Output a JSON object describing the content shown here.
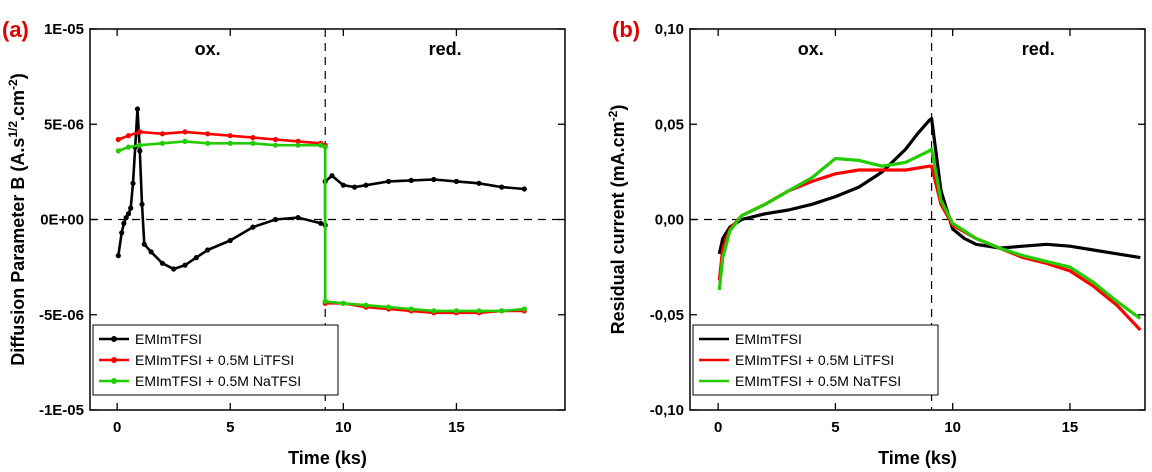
{
  "chart_data": [
    {
      "type": "line",
      "panel_label": "(a)",
      "xlabel": "Time (ks)",
      "ylabel": "Diffusion Parameter B (A.s^1/2.cm^-2)",
      "ylabel_parts": {
        "main": "Diffusion Parameter B (A.s",
        "sup1": "1/2",
        "mid": ".cm",
        "sup2": "-2",
        "end": ")"
      },
      "xlim": [
        -1.2,
        19.8
      ],
      "ylim": [
        -1e-05,
        1e-05
      ],
      "x_ticks": [
        0,
        5,
        10,
        15
      ],
      "x_tick_labels": [
        "0",
        "5",
        "10",
        "15"
      ],
      "y_ticks": [
        -1e-05,
        -5e-06,
        0,
        5e-06,
        1e-05
      ],
      "y_tick_labels": [
        "-1E-05",
        "-5E-06",
        "0E+00",
        "5E-06",
        "1E-05"
      ],
      "regions": [
        "ox.",
        "red."
      ],
      "divider_x": 9.2,
      "zero_line": 0,
      "legend_position": "bottom-left",
      "series": [
        {
          "name": "EMImTFSI",
          "color": "#000000",
          "marker": "dot",
          "x": [
            0.05,
            0.2,
            0.3,
            0.4,
            0.5,
            0.6,
            0.7,
            0.8,
            0.9,
            1.0,
            1.1,
            1.2,
            1.5,
            2.0,
            2.5,
            3.0,
            3.5,
            4.0,
            5.0,
            6.0,
            7.0,
            8.0,
            9.0,
            9.2,
            9.2,
            9.5,
            10.0,
            10.5,
            11.0,
            12.0,
            13.0,
            14.0,
            15.0,
            16.0,
            17.0,
            18.0
          ],
          "y": [
            -1.9e-06,
            -7e-07,
            -2e-07,
            1e-07,
            3e-07,
            6e-07,
            1.9e-06,
            3.8e-06,
            5.8e-06,
            3.6e-06,
            8e-07,
            -1.3e-06,
            -1.7e-06,
            -2.3e-06,
            -2.6e-06,
            -2.4e-06,
            -2e-06,
            -1.6e-06,
            -1.1e-06,
            -4e-07,
            0.0,
            1e-07,
            -2e-07,
            -3e-07,
            2e-06,
            2.3e-06,
            1.8e-06,
            1.7e-06,
            1.8e-06,
            2e-06,
            2.05e-06,
            2.1e-06,
            2e-06,
            1.9e-06,
            1.7e-06,
            1.6e-06
          ]
        },
        {
          "name": "EMImTFSI + 0.5M LiTFSI",
          "color": "#ff0000",
          "marker": "dot",
          "x": [
            0.05,
            0.5,
            1.0,
            2.0,
            3.0,
            4.0,
            5.0,
            6.0,
            7.0,
            8.0,
            9.0,
            9.2,
            9.2,
            10.0,
            11.0,
            12.0,
            13.0,
            14.0,
            15.0,
            16.0,
            17.0,
            18.0
          ],
          "y": [
            4.2e-06,
            4.4e-06,
            4.6e-06,
            4.5e-06,
            4.6e-06,
            4.5e-06,
            4.4e-06,
            4.3e-06,
            4.2e-06,
            4.1e-06,
            4e-06,
            3.9e-06,
            -4.4e-06,
            -4.4e-06,
            -4.6e-06,
            -4.7e-06,
            -4.8e-06,
            -4.9e-06,
            -4.9e-06,
            -4.9e-06,
            -4.8e-06,
            -4.8e-06
          ]
        },
        {
          "name": "EMImTFSI + 0.5M NaTFSI",
          "color": "#22cc00",
          "marker": "dot",
          "x": [
            0.05,
            0.5,
            1.0,
            2.0,
            3.0,
            4.0,
            5.0,
            6.0,
            7.0,
            8.0,
            9.0,
            9.2,
            9.2,
            10.0,
            11.0,
            12.0,
            13.0,
            14.0,
            15.0,
            16.0,
            17.0,
            18.0
          ],
          "y": [
            3.6e-06,
            3.8e-06,
            3.9e-06,
            4e-06,
            4.1e-06,
            4e-06,
            4e-06,
            4e-06,
            3.9e-06,
            3.9e-06,
            3.9e-06,
            3.8e-06,
            -4.3e-06,
            -4.4e-06,
            -4.5e-06,
            -4.6e-06,
            -4.7e-06,
            -4.8e-06,
            -4.8e-06,
            -4.8e-06,
            -4.8e-06,
            -4.7e-06
          ]
        }
      ]
    },
    {
      "type": "line",
      "panel_label": "(b)",
      "xlabel": "Time (ks)",
      "ylabel": "Residual current (mA.cm^-2)",
      "ylabel_parts": {
        "main": "Residual current (mA.cm",
        "sup1": "-2",
        "end": ")"
      },
      "xlim": [
        -1.2,
        18.2
      ],
      "ylim": [
        -0.1,
        0.1
      ],
      "x_ticks": [
        0,
        5,
        10,
        15
      ],
      "x_tick_labels": [
        "0",
        "5",
        "10",
        "15"
      ],
      "y_ticks": [
        -0.1,
        -0.05,
        0,
        0.05,
        0.1
      ],
      "y_tick_labels": [
        "-0,10",
        "-0,05",
        "0,00",
        "0,05",
        "0,10"
      ],
      "regions": [
        "ox.",
        "red."
      ],
      "divider_x": 9.1,
      "zero_line": 0,
      "legend_position": "bottom-left",
      "series": [
        {
          "name": "EMImTFSI",
          "color": "#000000",
          "marker": "none",
          "x": [
            0.05,
            0.2,
            0.5,
            1.0,
            2.0,
            3.0,
            4.0,
            5.0,
            6.0,
            7.0,
            8.0,
            8.5,
            9.0,
            9.1,
            9.5,
            10.0,
            10.5,
            11.0,
            12.0,
            13.0,
            14.0,
            15.0,
            16.0,
            17.0,
            18.0
          ],
          "y": [
            -0.018,
            -0.01,
            -0.004,
            0.0,
            0.003,
            0.005,
            0.008,
            0.012,
            0.017,
            0.025,
            0.037,
            0.045,
            0.052,
            0.053,
            0.015,
            -0.005,
            -0.01,
            -0.013,
            -0.015,
            -0.014,
            -0.013,
            -0.014,
            -0.016,
            -0.018,
            -0.02
          ]
        },
        {
          "name": "EMImTFSI + 0.5M LiTFSI",
          "color": "#ff0000",
          "marker": "none",
          "x": [
            0.05,
            0.2,
            0.5,
            1.0,
            2.0,
            3.0,
            4.0,
            5.0,
            6.0,
            7.0,
            8.0,
            9.0,
            9.1,
            9.5,
            10.0,
            11.0,
            12.0,
            13.0,
            14.0,
            15.0,
            16.0,
            17.0,
            18.0
          ],
          "y": [
            -0.032,
            -0.015,
            -0.005,
            0.002,
            0.008,
            0.015,
            0.02,
            0.024,
            0.026,
            0.026,
            0.026,
            0.028,
            0.028,
            0.008,
            -0.003,
            -0.01,
            -0.015,
            -0.02,
            -0.023,
            -0.027,
            -0.035,
            -0.045,
            -0.058
          ]
        },
        {
          "name": "EMImTFSI + 0.5M NaTFSI",
          "color": "#22cc00",
          "marker": "none",
          "x": [
            0.05,
            0.2,
            0.5,
            1.0,
            2.0,
            3.0,
            4.0,
            5.0,
            6.0,
            7.0,
            8.0,
            9.0,
            9.1,
            9.5,
            10.0,
            11.0,
            12.0,
            13.0,
            14.0,
            15.0,
            16.0,
            17.0,
            18.0
          ],
          "y": [
            -0.037,
            -0.02,
            -0.006,
            0.002,
            0.008,
            0.015,
            0.022,
            0.032,
            0.031,
            0.028,
            0.03,
            0.036,
            0.037,
            0.01,
            -0.002,
            -0.01,
            -0.015,
            -0.019,
            -0.022,
            -0.025,
            -0.033,
            -0.043,
            -0.052
          ]
        }
      ]
    }
  ]
}
